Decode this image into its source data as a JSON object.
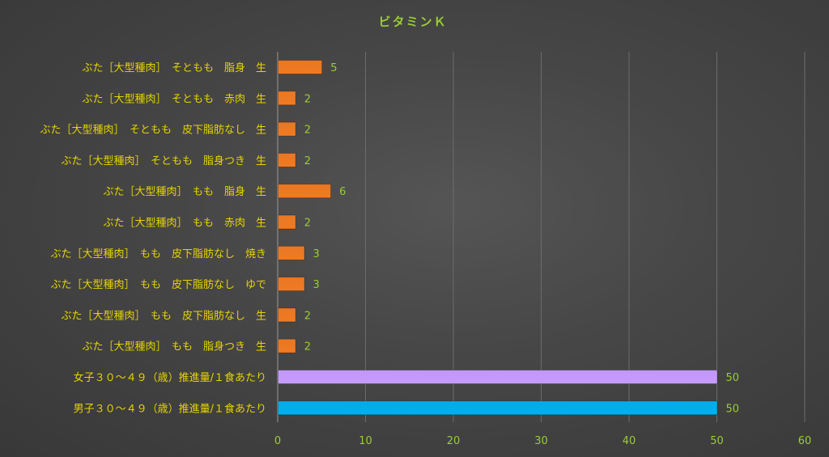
{
  "chart_data": {
    "type": "bar",
    "orientation": "horizontal",
    "title": "ビタミンＫ",
    "categories": [
      "ぶた［大型種肉］　そともも　脂身　生",
      "ぶた［大型種肉］　そともも　赤肉　生",
      "ぶた［大型種肉］　そともも　皮下脂肪なし　生",
      "ぶた［大型種肉］　そともも　脂身つき　生",
      "ぶた［大型種肉］　もも　脂身　生",
      "ぶた［大型種肉］　もも　赤肉　生",
      "ぶた［大型種肉］　もも　皮下脂肪なし　焼き",
      "ぶた［大型種肉］　もも　皮下脂肪なし　ゆで",
      "ぶた［大型種肉］　もも　皮下脂肪なし　生",
      "ぶた［大型種肉］　もも　脂身つき　生",
      "女子３０～４９（歳）推進量/１食あたり",
      "男子３０～４９（歳）推進量/１食あたり"
    ],
    "values": [
      5,
      2,
      2,
      2,
      6,
      2,
      3,
      3,
      2,
      2,
      50,
      50
    ],
    "bar_colors": [
      "#F07A22",
      "#F07A22",
      "#F07A22",
      "#F07A22",
      "#F07A22",
      "#F07A22",
      "#F07A22",
      "#F07A22",
      "#F07A22",
      "#F07A22",
      "#C79BFF",
      "#00B0F0"
    ],
    "xlim": [
      0,
      60
    ],
    "x_ticks": [
      0,
      10,
      20,
      30,
      40,
      50,
      60
    ],
    "grid": true,
    "legend": "none"
  }
}
